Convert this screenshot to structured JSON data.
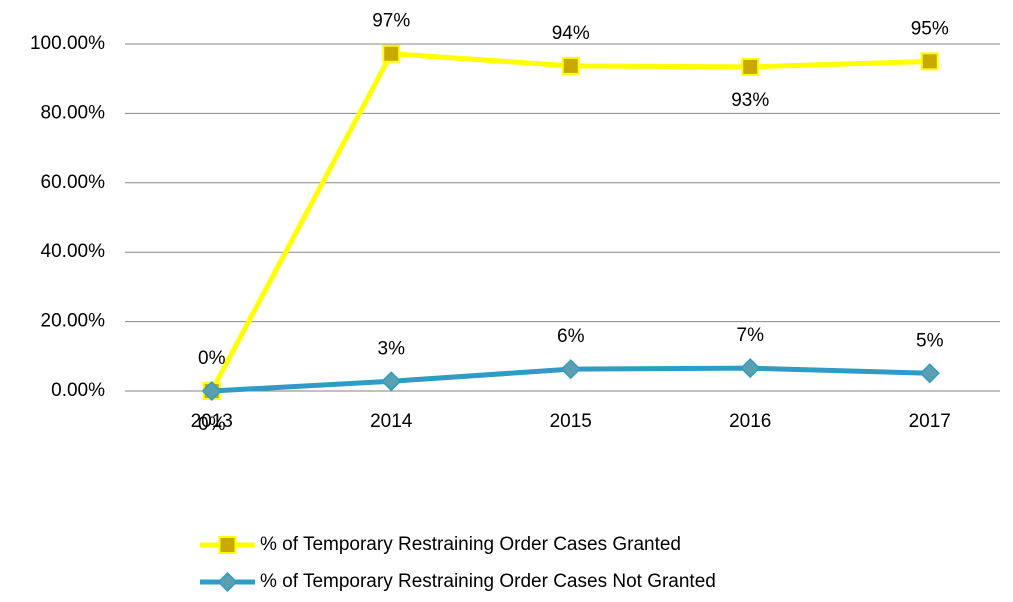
{
  "chart_data": {
    "type": "line",
    "categories": [
      "2013",
      "2014",
      "2015",
      "2016",
      "2017"
    ],
    "series": [
      {
        "name": "% of Temporary Restraining Order Cases Granted",
        "color": "#ffff00",
        "marker_color": "#c9a800",
        "marker": "square",
        "values": [
          0,
          97.2,
          93.7,
          93.4,
          95
        ],
        "value_labels": [
          "0%",
          "97%",
          "94%",
          "93%",
          "95%"
        ]
      },
      {
        "name": "% of Temporary Restraining Order Cases Not Granted",
        "color": "#2e9cc4",
        "marker_color": "#5b9fb0",
        "marker": "diamond",
        "values": [
          0,
          2.8,
          6.3,
          6.6,
          5.1
        ],
        "value_labels": [
          "0%",
          "3%",
          "6%",
          "7%",
          "5%"
        ]
      }
    ],
    "ylim": [
      0,
      100
    ],
    "yticks": [
      {
        "value": 0,
        "label": "0.00%"
      },
      {
        "value": 20,
        "label": "20.00%"
      },
      {
        "value": 40,
        "label": "40.00%"
      },
      {
        "value": 60,
        "label": "60.00%"
      },
      {
        "value": 80,
        "label": "80.00%"
      },
      {
        "value": 100,
        "label": "100.00%"
      }
    ],
    "grid": true,
    "legend": "bottom"
  }
}
